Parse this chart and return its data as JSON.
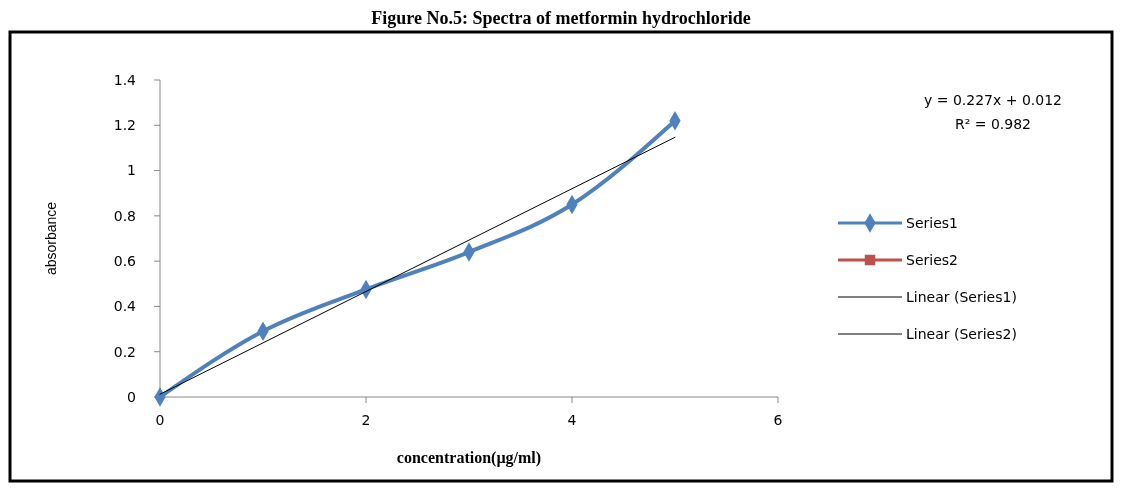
{
  "chart_data": {
    "type": "line",
    "title": "Figure No.5: Spectra of metformin hydrochloride",
    "xlabel": "concentration(µg/ml)",
    "ylabel": "absorbance",
    "x": [
      0,
      1,
      2,
      3,
      4,
      5
    ],
    "series": [
      {
        "name": "Series1",
        "color": "#4f81bd",
        "values": [
          0,
          0.29,
          0.475,
          0.64,
          0.85,
          1.22
        ],
        "marker": "diamond"
      },
      {
        "name": "Series2",
        "color": "#c0504d",
        "values": [
          null,
          null,
          null,
          null,
          null,
          null
        ],
        "marker": "square"
      },
      {
        "name": "Linear (Series1)",
        "type": "line",
        "color": "#000000",
        "x": [
          0,
          5
        ],
        "values": [
          0.012,
          1.147
        ],
        "marker": "none"
      },
      {
        "name": "Linear (Series2)",
        "type": "line",
        "color": "#000000",
        "values": [
          null,
          null,
          null,
          null,
          null,
          null
        ],
        "marker": "none"
      }
    ],
    "xlim": [
      0,
      6
    ],
    "xticks": [
      0,
      2,
      4,
      6
    ],
    "ylim": [
      0,
      1.4
    ],
    "yticks": [
      0,
      0.2,
      0.4,
      0.6,
      0.8,
      1,
      1.2,
      1.4
    ],
    "annotations": [
      "y = 0.227x + 0.012",
      "R² = 0.982"
    ],
    "legend": "right",
    "grid": false
  }
}
